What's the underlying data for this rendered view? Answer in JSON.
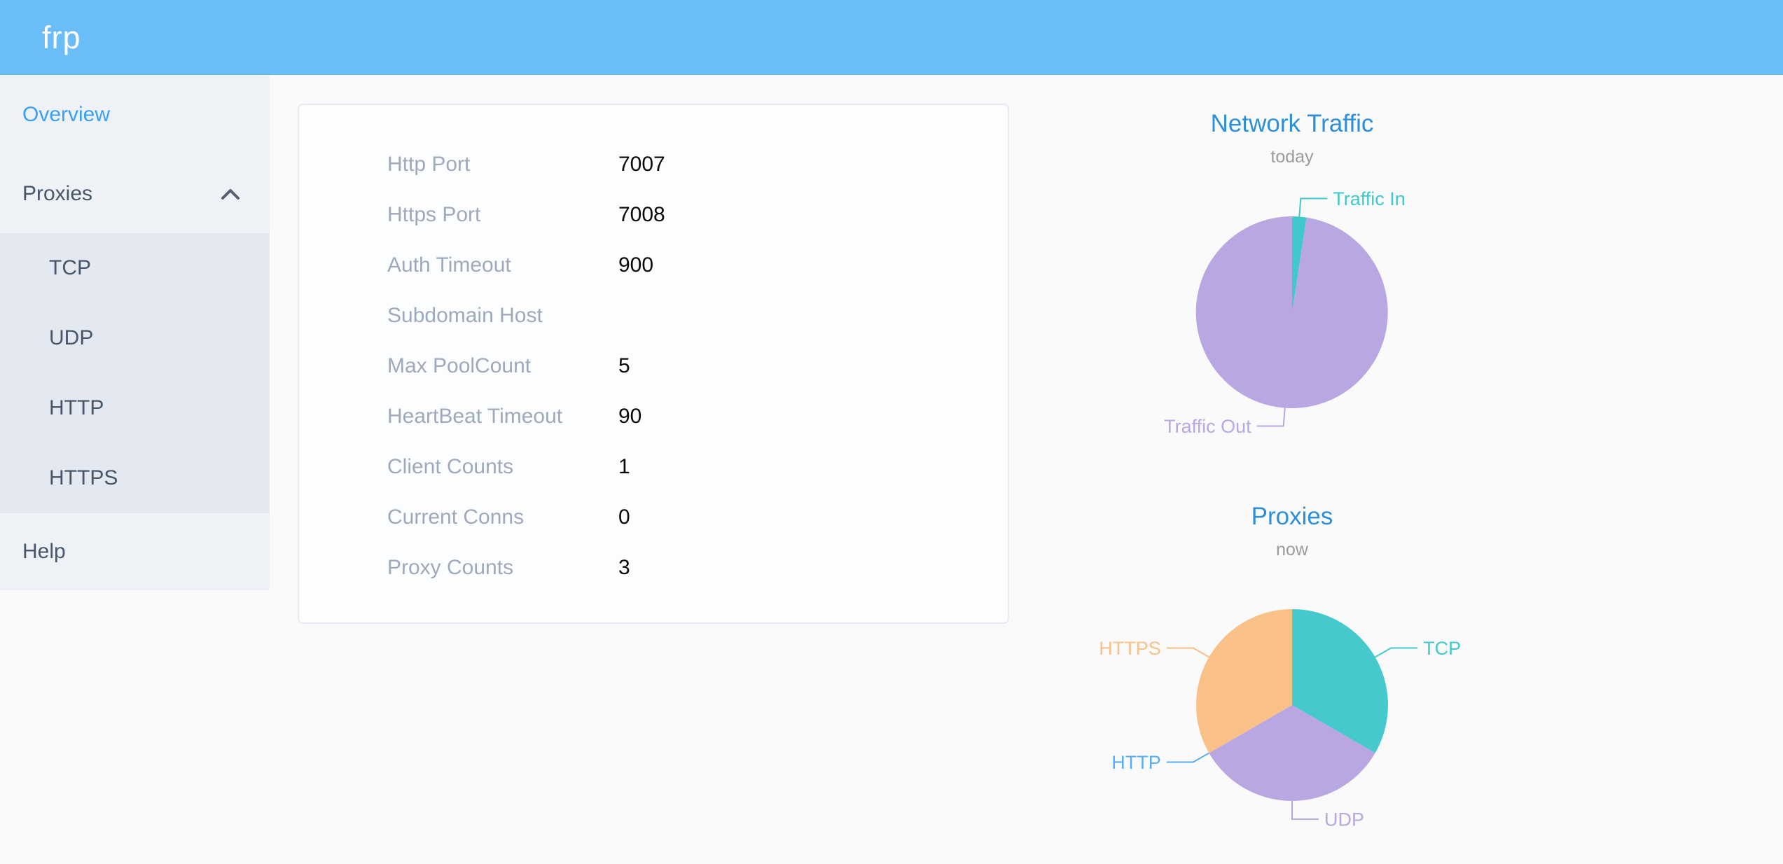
{
  "header": {
    "logo_text": "frp"
  },
  "sidebar": {
    "overview_label": "Overview",
    "proxies_label": "Proxies",
    "proxies_expanded": true,
    "proxies_children": [
      "TCP",
      "UDP",
      "HTTP",
      "HTTPS"
    ],
    "help_label": "Help",
    "active_item": "Overview"
  },
  "server_info": {
    "rows": [
      {
        "label": "Http Port",
        "value": "7007"
      },
      {
        "label": "Https Port",
        "value": "7008"
      },
      {
        "label": "Auth Timeout",
        "value": "900"
      },
      {
        "label": "Subdomain Host",
        "value": ""
      },
      {
        "label": "Max PoolCount",
        "value": "5"
      },
      {
        "label": "HeartBeat Timeout",
        "value": "90"
      },
      {
        "label": "Client Counts",
        "value": "1"
      },
      {
        "label": "Current Conns",
        "value": "0"
      },
      {
        "label": "Proxy Counts",
        "value": "3"
      }
    ]
  },
  "chart_data": [
    {
      "type": "pie",
      "title": "Network Traffic",
      "subtitle": "today",
      "legend_position": "outside-labels",
      "series": [
        {
          "name": "Traffic In",
          "value": 2.4,
          "color": "#41c8ca"
        },
        {
          "name": "Traffic Out",
          "value": 97.6,
          "color": "#b9a7e2"
        }
      ]
    },
    {
      "type": "pie",
      "title": "Proxies",
      "subtitle": "now",
      "legend_position": "outside-labels",
      "series": [
        {
          "name": "TCP",
          "value": 1,
          "color": "#45c9cd"
        },
        {
          "name": "UDP",
          "value": 1,
          "color": "#b9a7e2"
        },
        {
          "name": "HTTP",
          "value": 0,
          "color": "#5aaef3"
        },
        {
          "name": "HTTPS",
          "value": 1,
          "color": "#f9c088"
        }
      ]
    }
  ],
  "colors": {
    "header_background": "#6abdf7",
    "sidebar_background": "#eef1f6",
    "submenu_background": "#e4e8f1",
    "sidebar_text": "#475669",
    "active_menu_item": "#3a9ff5",
    "form_label": "#9fa9bc",
    "chart_title": "#2d8fd8",
    "chart_subtitle": "#9b9b9b"
  }
}
